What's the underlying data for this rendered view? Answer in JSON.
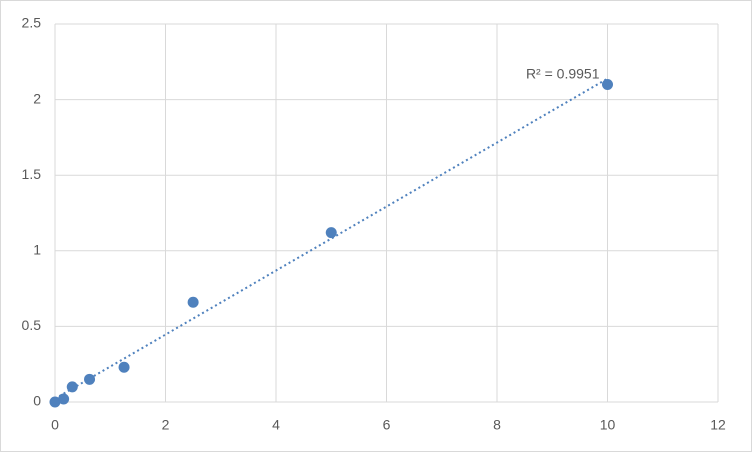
{
  "chart_data": {
    "type": "scatter",
    "x": [
      0,
      0.156,
      0.3125,
      0.625,
      1.25,
      2.5,
      5,
      10
    ],
    "values": [
      0,
      0.02,
      0.1,
      0.15,
      0.23,
      0.66,
      1.12,
      2.1
    ],
    "color": "#4f81bd",
    "trendline": true,
    "annotation": "R² = 0.9951",
    "xlim": [
      0,
      12
    ],
    "xticks": [
      0,
      2,
      4,
      6,
      8,
      10,
      12
    ],
    "ylim": [
      0,
      2.5
    ],
    "yticks": [
      0,
      0.5,
      1,
      1.5,
      2,
      2.5
    ],
    "grid": true
  }
}
